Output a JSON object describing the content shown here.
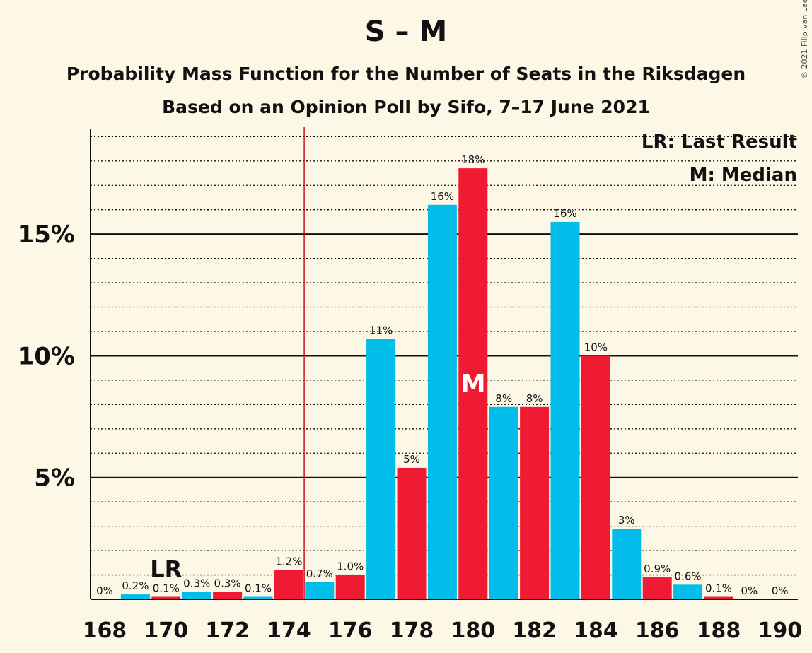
{
  "header": {
    "title": "S – M",
    "subtitle_1": "Probability Mass Function for the Number of Seats in the Riksdagen",
    "subtitle_2": "Based on an Opinion Poll by Sifo, 7–17 June 2021",
    "copyright": "© 2021 Filip van Laenen"
  },
  "colors": {
    "background": "#fdf8e6",
    "cyan": "#00bde9",
    "red": "#ee1b33",
    "majority_line": "#cc1122"
  },
  "chart_data": {
    "type": "bar",
    "title": "S – M",
    "x": [
      168,
      169,
      170,
      171,
      172,
      173,
      174,
      175,
      176,
      177,
      178,
      179,
      180,
      181,
      182,
      183,
      184,
      185,
      186,
      187,
      188,
      189,
      190
    ],
    "values": [
      0,
      0.2,
      0.1,
      0.3,
      0.3,
      0.1,
      1.2,
      0.7,
      1.0,
      10.7,
      5.4,
      16.2,
      17.7,
      7.9,
      7.9,
      15.5,
      10.0,
      2.9,
      0.9,
      0.6,
      0.1,
      0,
      0
    ],
    "data_labels": [
      "0%",
      "0.2%",
      "0.1%",
      "0.3%",
      "0.3%",
      "0.1%",
      "1.2%",
      "0.7%",
      "1.0%",
      "11%",
      "5%",
      "16%",
      "18%",
      "8%",
      "8%",
      "16%",
      "10%",
      "3%",
      "0.9%",
      "0.6%",
      "0.1%",
      "0%",
      "0%"
    ],
    "colors": [
      "cyan",
      "cyan",
      "red",
      "cyan",
      "red",
      "cyan",
      "red",
      "cyan",
      "red",
      "cyan",
      "red",
      "cyan",
      "red",
      "cyan",
      "red",
      "cyan",
      "red",
      "cyan",
      "red",
      "cyan",
      "red",
      "cyan",
      "red"
    ],
    "x_tick_labels": [
      "168",
      "170",
      "172",
      "174",
      "176",
      "178",
      "180",
      "182",
      "184",
      "186",
      "188",
      "190"
    ],
    "y_tick_labels": [
      "5%",
      "10%",
      "15%"
    ],
    "y_ticks": [
      5,
      10,
      15
    ],
    "ylim": [
      0,
      19.3
    ],
    "minor_gridlines_every": 1,
    "majority_threshold": 174.5,
    "last_result": {
      "seat": 170,
      "label": "LR"
    },
    "median": {
      "seat": 180,
      "label": "M"
    },
    "legend": [
      "LR: Last Result",
      "M: Median"
    ],
    "legend_position": "top-right"
  }
}
